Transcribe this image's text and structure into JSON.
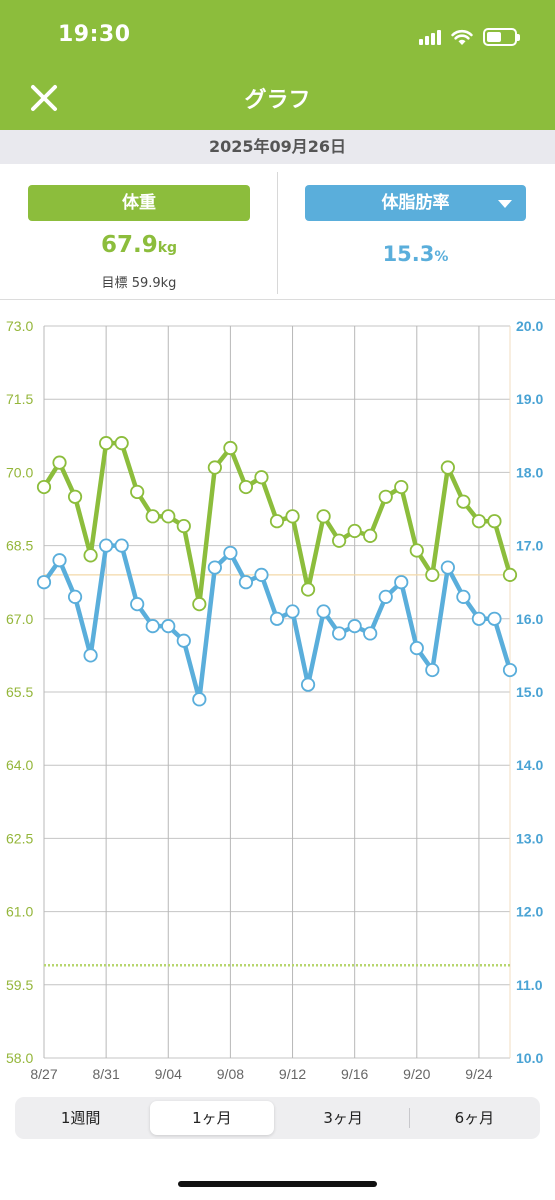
{
  "status_bar": {
    "time": "19:30",
    "icons": [
      "signal-icon",
      "wifi-icon",
      "battery-icon"
    ]
  },
  "nav": {
    "title": "グラフ",
    "close_icon": "close-icon"
  },
  "date": "2025年09月26日",
  "weight_card": {
    "label": "体重",
    "value": "67.9",
    "unit": "kg",
    "goal_label": "目標",
    "goal_value": "59.9kg"
  },
  "fat_card": {
    "label": "体脂肪率",
    "value": "15.3",
    "unit": "%"
  },
  "period_tabs": [
    {
      "label": "1週間",
      "active": false
    },
    {
      "label": "1ヶ月",
      "active": true
    },
    {
      "label": "3ヶ月",
      "active": false
    },
    {
      "label": "6ヶ月",
      "active": false
    }
  ],
  "colors": {
    "accent_green": "#8cbd3c",
    "accent_blue": "#5aaedb"
  },
  "chart_data": {
    "type": "line",
    "x": [
      "8/27",
      "8/28",
      "8/29",
      "8/30",
      "8/31",
      "9/01",
      "9/02",
      "9/03",
      "9/04",
      "9/05",
      "9/06",
      "9/07",
      "9/08",
      "9/09",
      "9/10",
      "9/11",
      "9/12",
      "9/13",
      "9/14",
      "9/15",
      "9/16",
      "9/17",
      "9/18",
      "9/19",
      "9/20",
      "9/21",
      "9/22",
      "9/23",
      "9/24",
      "9/25",
      "9/26"
    ],
    "x_tick_labels": [
      "8/27",
      "8/31",
      "9/04",
      "9/08",
      "9/12",
      "9/16",
      "9/20",
      "9/24"
    ],
    "series": [
      {
        "name": "体重",
        "axis": "left",
        "color": "#8cbd3c",
        "values": [
          69.7,
          70.2,
          69.5,
          68.3,
          70.6,
          70.6,
          69.6,
          69.1,
          69.1,
          68.9,
          67.3,
          70.1,
          70.5,
          69.7,
          69.9,
          69.0,
          69.1,
          67.6,
          69.1,
          68.6,
          68.8,
          68.7,
          69.5,
          69.7,
          68.4,
          67.9,
          70.1,
          69.4,
          69.0,
          69.0,
          67.9
        ]
      },
      {
        "name": "体脂肪率",
        "axis": "right",
        "color": "#5aaedb",
        "values": [
          16.5,
          16.8,
          16.3,
          15.5,
          17.0,
          17.0,
          16.2,
          15.9,
          15.9,
          15.7,
          14.9,
          16.7,
          16.9,
          16.5,
          16.6,
          16.0,
          16.1,
          15.1,
          16.1,
          15.8,
          15.9,
          15.8,
          16.3,
          16.5,
          15.6,
          15.3,
          16.7,
          16.3,
          16.0,
          16.0,
          15.3
        ]
      }
    ],
    "left_axis": {
      "range": [
        58.0,
        73.0
      ],
      "ticks": [
        "58.0",
        "59.5",
        "61.0",
        "62.5",
        "64.0",
        "65.5",
        "67.0",
        "68.5",
        "70.0",
        "71.5",
        "73.0"
      ]
    },
    "right_axis": {
      "range": [
        10.0,
        20.0
      ],
      "ticks": [
        "10.0",
        "11.0",
        "12.0",
        "13.0",
        "14.0",
        "15.0",
        "16.0",
        "17.0",
        "18.0",
        "19.0",
        "20.0"
      ]
    },
    "reference_lines": [
      {
        "kind": "current",
        "axis": "left",
        "value": 67.9,
        "color": "#f3d9a8"
      },
      {
        "kind": "goal",
        "axis": "left",
        "value": 59.9,
        "color": "#b7d66e",
        "style": "dotted"
      }
    ],
    "grid": true
  }
}
